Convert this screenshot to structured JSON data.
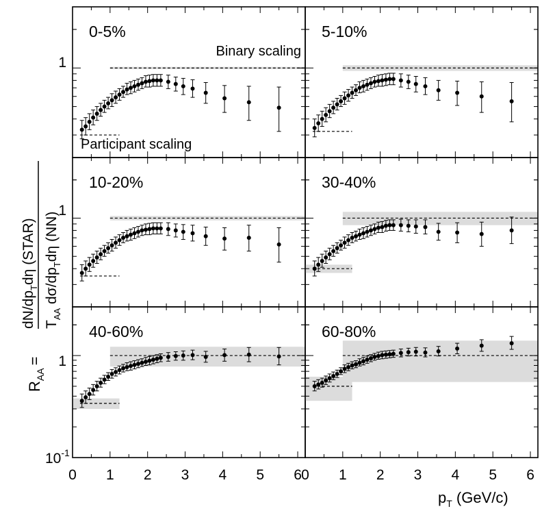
{
  "figure": {
    "ylabel_r": "R",
    "ylabel_r_sub": "AA",
    "ylabel_eq": "=",
    "numerator": {
      "a": "dN/dp",
      "a_sub": "T",
      "b": "dη (STAR)"
    },
    "denominator": {
      "a": "T",
      "a_sub": "AA",
      "b": " dσ/dp",
      "b_sub": "T",
      "c": "dη (NN)"
    },
    "xlabel_p": "p",
    "xlabel_sub": "T",
    "xlabel_rest": " (GeV/c)",
    "ytick_10": "10",
    "ytick_exp": "-1",
    "ytick_1": "1",
    "xticks": [
      "0",
      "1",
      "2",
      "3",
      "4",
      "5",
      "6"
    ],
    "binary_label": "Binary scaling",
    "participant_label": "Participant scaling"
  },
  "chart_data": [
    {
      "type": "scatter",
      "title": "0-5%",
      "x": [
        0.25,
        0.35,
        0.45,
        0.55,
        0.65,
        0.75,
        0.85,
        0.95,
        1.05,
        1.15,
        1.25,
        1.35,
        1.45,
        1.55,
        1.65,
        1.75,
        1.85,
        1.95,
        2.05,
        2.15,
        2.25,
        2.35,
        2.55,
        2.75,
        2.95,
        3.2,
        3.55,
        4.05,
        4.7,
        5.5
      ],
      "y": [
        0.33,
        0.35,
        0.38,
        0.41,
        0.44,
        0.47,
        0.5,
        0.53,
        0.56,
        0.59,
        0.62,
        0.65,
        0.68,
        0.7,
        0.72,
        0.74,
        0.76,
        0.78,
        0.79,
        0.8,
        0.8,
        0.8,
        0.78,
        0.75,
        0.72,
        0.69,
        0.64,
        0.58,
        0.54,
        0.49
      ],
      "err_up": [
        0.06,
        0.06,
        0.06,
        0.06,
        0.06,
        0.06,
        0.06,
        0.06,
        0.07,
        0.07,
        0.07,
        0.07,
        0.08,
        0.08,
        0.08,
        0.08,
        0.08,
        0.09,
        0.09,
        0.09,
        0.09,
        0.09,
        0.1,
        0.1,
        0.11,
        0.12,
        0.13,
        0.15,
        0.18,
        0.22
      ],
      "err_down": [
        0.05,
        0.05,
        0.05,
        0.05,
        0.05,
        0.05,
        0.05,
        0.05,
        0.06,
        0.06,
        0.06,
        0.06,
        0.06,
        0.07,
        0.07,
        0.07,
        0.07,
        0.07,
        0.08,
        0.08,
        0.08,
        0.08,
        0.09,
        0.09,
        0.1,
        0.1,
        0.11,
        0.13,
        0.15,
        0.17
      ],
      "binary_band": [
        0.98,
        1.02
      ],
      "participant_level": 0.3,
      "participant_band": [
        0.3,
        0.3
      ]
    },
    {
      "type": "scatter",
      "title": "5-10%",
      "x": [
        0.25,
        0.35,
        0.45,
        0.55,
        0.65,
        0.75,
        0.85,
        0.95,
        1.05,
        1.15,
        1.25,
        1.35,
        1.45,
        1.55,
        1.65,
        1.75,
        1.85,
        1.95,
        2.05,
        2.15,
        2.25,
        2.35,
        2.55,
        2.75,
        2.95,
        3.2,
        3.55,
        4.05,
        4.7,
        5.5
      ],
      "y": [
        0.34,
        0.37,
        0.4,
        0.43,
        0.46,
        0.49,
        0.52,
        0.55,
        0.58,
        0.61,
        0.64,
        0.67,
        0.7,
        0.72,
        0.74,
        0.76,
        0.78,
        0.79,
        0.8,
        0.81,
        0.82,
        0.82,
        0.8,
        0.78,
        0.75,
        0.72,
        0.67,
        0.64,
        0.6,
        0.55
      ],
      "err_up": [
        0.06,
        0.06,
        0.06,
        0.06,
        0.06,
        0.06,
        0.06,
        0.06,
        0.07,
        0.07,
        0.07,
        0.07,
        0.08,
        0.08,
        0.08,
        0.08,
        0.08,
        0.09,
        0.09,
        0.09,
        0.09,
        0.09,
        0.1,
        0.1,
        0.11,
        0.12,
        0.13,
        0.15,
        0.18,
        0.22
      ],
      "err_down": [
        0.05,
        0.05,
        0.05,
        0.05,
        0.05,
        0.05,
        0.05,
        0.05,
        0.06,
        0.06,
        0.06,
        0.06,
        0.06,
        0.07,
        0.07,
        0.07,
        0.07,
        0.07,
        0.08,
        0.08,
        0.08,
        0.08,
        0.09,
        0.09,
        0.1,
        0.1,
        0.11,
        0.13,
        0.15,
        0.17
      ],
      "binary_band": [
        0.95,
        1.05
      ],
      "participant_level": 0.32,
      "participant_band": [
        0.32,
        0.32
      ]
    },
    {
      "type": "scatter",
      "title": "10-20%",
      "x": [
        0.25,
        0.35,
        0.45,
        0.55,
        0.65,
        0.75,
        0.85,
        0.95,
        1.05,
        1.15,
        1.25,
        1.35,
        1.45,
        1.55,
        1.65,
        1.75,
        1.85,
        1.95,
        2.05,
        2.15,
        2.25,
        2.35,
        2.55,
        2.75,
        2.95,
        3.2,
        3.55,
        4.05,
        4.7,
        5.5
      ],
      "y": [
        0.37,
        0.4,
        0.43,
        0.46,
        0.49,
        0.52,
        0.55,
        0.58,
        0.61,
        0.64,
        0.67,
        0.7,
        0.72,
        0.74,
        0.76,
        0.78,
        0.8,
        0.81,
        0.82,
        0.83,
        0.83,
        0.83,
        0.82,
        0.8,
        0.78,
        0.76,
        0.72,
        0.69,
        0.7,
        0.62
      ],
      "err_up": [
        0.06,
        0.06,
        0.06,
        0.06,
        0.06,
        0.06,
        0.06,
        0.06,
        0.07,
        0.07,
        0.07,
        0.07,
        0.08,
        0.08,
        0.08,
        0.08,
        0.08,
        0.09,
        0.09,
        0.09,
        0.09,
        0.09,
        0.1,
        0.1,
        0.11,
        0.12,
        0.13,
        0.15,
        0.18,
        0.22
      ],
      "err_down": [
        0.05,
        0.05,
        0.05,
        0.05,
        0.05,
        0.05,
        0.05,
        0.05,
        0.06,
        0.06,
        0.06,
        0.06,
        0.06,
        0.07,
        0.07,
        0.07,
        0.07,
        0.07,
        0.08,
        0.08,
        0.08,
        0.08,
        0.09,
        0.09,
        0.1,
        0.1,
        0.11,
        0.13,
        0.15,
        0.17
      ],
      "binary_band": [
        0.96,
        1.04
      ],
      "participant_level": 0.35,
      "participant_band": [
        0.35,
        0.35
      ]
    },
    {
      "type": "scatter",
      "title": "30-40%",
      "x": [
        0.25,
        0.35,
        0.45,
        0.55,
        0.65,
        0.75,
        0.85,
        0.95,
        1.05,
        1.15,
        1.25,
        1.35,
        1.45,
        1.55,
        1.65,
        1.75,
        1.85,
        1.95,
        2.05,
        2.15,
        2.25,
        2.35,
        2.55,
        2.75,
        2.95,
        3.2,
        3.55,
        4.05,
        4.7,
        5.5
      ],
      "y": [
        0.4,
        0.43,
        0.46,
        0.49,
        0.52,
        0.55,
        0.58,
        0.61,
        0.64,
        0.67,
        0.7,
        0.72,
        0.74,
        0.76,
        0.78,
        0.8,
        0.82,
        0.84,
        0.85,
        0.87,
        0.88,
        0.88,
        0.88,
        0.87,
        0.86,
        0.85,
        0.78,
        0.77,
        0.75,
        0.8
      ],
      "err_up": [
        0.06,
        0.06,
        0.06,
        0.06,
        0.06,
        0.06,
        0.06,
        0.06,
        0.07,
        0.07,
        0.07,
        0.07,
        0.08,
        0.08,
        0.08,
        0.08,
        0.08,
        0.09,
        0.09,
        0.09,
        0.09,
        0.09,
        0.1,
        0.1,
        0.11,
        0.12,
        0.13,
        0.15,
        0.18,
        0.22
      ],
      "err_down": [
        0.05,
        0.05,
        0.05,
        0.05,
        0.05,
        0.05,
        0.05,
        0.05,
        0.06,
        0.06,
        0.06,
        0.06,
        0.06,
        0.07,
        0.07,
        0.07,
        0.07,
        0.07,
        0.08,
        0.08,
        0.08,
        0.08,
        0.09,
        0.09,
        0.1,
        0.1,
        0.11,
        0.13,
        0.15,
        0.17
      ],
      "binary_band": [
        0.88,
        1.12
      ],
      "participant_level": 0.4,
      "participant_band": [
        0.37,
        0.43
      ]
    },
    {
      "type": "scatter",
      "title": "40-60%",
      "x": [
        0.25,
        0.35,
        0.45,
        0.55,
        0.65,
        0.75,
        0.85,
        0.95,
        1.05,
        1.15,
        1.25,
        1.35,
        1.45,
        1.55,
        1.65,
        1.75,
        1.85,
        1.95,
        2.05,
        2.15,
        2.25,
        2.35,
        2.55,
        2.75,
        2.95,
        3.2,
        3.55,
        4.05,
        4.7,
        5.5
      ],
      "y": [
        0.36,
        0.39,
        0.42,
        0.46,
        0.5,
        0.54,
        0.58,
        0.62,
        0.66,
        0.69,
        0.72,
        0.75,
        0.77,
        0.79,
        0.81,
        0.83,
        0.85,
        0.87,
        0.89,
        0.91,
        0.93,
        0.95,
        0.97,
        0.99,
        1.0,
        1.01,
        0.97,
        1.01,
        1.02,
        0.98
      ],
      "err_up": [
        0.06,
        0.06,
        0.06,
        0.06,
        0.06,
        0.06,
        0.06,
        0.06,
        0.07,
        0.07,
        0.07,
        0.07,
        0.08,
        0.08,
        0.08,
        0.08,
        0.08,
        0.09,
        0.09,
        0.09,
        0.09,
        0.09,
        0.1,
        0.1,
        0.11,
        0.12,
        0.13,
        0.15,
        0.18,
        0.22
      ],
      "err_down": [
        0.05,
        0.05,
        0.05,
        0.05,
        0.05,
        0.05,
        0.05,
        0.05,
        0.06,
        0.06,
        0.06,
        0.06,
        0.06,
        0.07,
        0.07,
        0.07,
        0.07,
        0.07,
        0.08,
        0.08,
        0.08,
        0.08,
        0.09,
        0.09,
        0.1,
        0.1,
        0.11,
        0.13,
        0.15,
        0.17
      ],
      "binary_band": [
        0.78,
        1.22
      ],
      "participant_level": 0.34,
      "participant_band": [
        0.3,
        0.38
      ]
    },
    {
      "type": "scatter",
      "title": "60-80%",
      "x": [
        0.25,
        0.35,
        0.45,
        0.55,
        0.65,
        0.75,
        0.85,
        0.95,
        1.05,
        1.15,
        1.25,
        1.35,
        1.45,
        1.55,
        1.65,
        1.75,
        1.85,
        1.95,
        2.05,
        2.15,
        2.25,
        2.35,
        2.55,
        2.75,
        2.95,
        3.2,
        3.55,
        4.05,
        4.7,
        5.5
      ],
      "y": [
        0.5,
        0.52,
        0.54,
        0.57,
        0.6,
        0.63,
        0.66,
        0.7,
        0.74,
        0.77,
        0.8,
        0.82,
        0.85,
        0.88,
        0.91,
        0.94,
        0.97,
        0.99,
        1.01,
        1.02,
        1.03,
        1.04,
        1.06,
        1.08,
        1.09,
        1.07,
        1.1,
        1.17,
        1.25,
        1.32
      ],
      "err_up": [
        0.06,
        0.06,
        0.06,
        0.06,
        0.06,
        0.06,
        0.06,
        0.06,
        0.07,
        0.07,
        0.07,
        0.07,
        0.08,
        0.08,
        0.08,
        0.08,
        0.08,
        0.09,
        0.09,
        0.09,
        0.09,
        0.09,
        0.1,
        0.1,
        0.11,
        0.12,
        0.13,
        0.15,
        0.18,
        0.22
      ],
      "err_down": [
        0.05,
        0.05,
        0.05,
        0.05,
        0.05,
        0.05,
        0.05,
        0.05,
        0.06,
        0.06,
        0.06,
        0.06,
        0.06,
        0.07,
        0.07,
        0.07,
        0.07,
        0.07,
        0.08,
        0.08,
        0.08,
        0.08,
        0.09,
        0.09,
        0.1,
        0.1,
        0.11,
        0.13,
        0.15,
        0.17
      ],
      "binary_band": [
        0.55,
        1.4
      ],
      "participant_level": 0.5,
      "participant_band": [
        0.36,
        0.62
      ]
    }
  ],
  "axes": {
    "x_range": [
      0,
      6.2
    ],
    "y_log": true,
    "y_range_panel": [
      0.2,
      3.0
    ],
    "y_range_bottom": [
      0.1,
      3.0
    ],
    "band_color": "#dcdcdc",
    "marker_color": "#000000"
  }
}
